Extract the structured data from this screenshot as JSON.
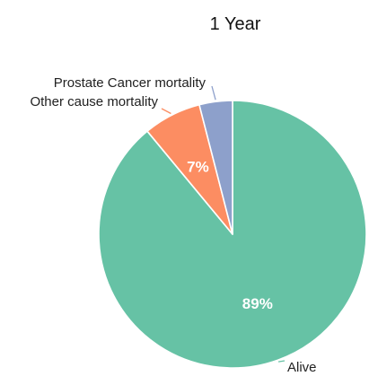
{
  "chart_data": {
    "type": "pie",
    "title": "1 Year",
    "slices": [
      {
        "label": "Alive",
        "value": 89,
        "value_label": "89%",
        "color": "#66c2a5",
        "show_value": true
      },
      {
        "label": "Other cause mortality",
        "value": 7,
        "value_label": "7%",
        "color": "#fc8d62",
        "show_value": true
      },
      {
        "label": "Prostate Cancer mortality",
        "value": 4,
        "value_label": "",
        "color": "#8da0cb",
        "show_value": false
      }
    ],
    "start_direction": "12 o'clock",
    "order": "clockwise",
    "slice_border_color": "#ffffff",
    "legend": "none"
  }
}
